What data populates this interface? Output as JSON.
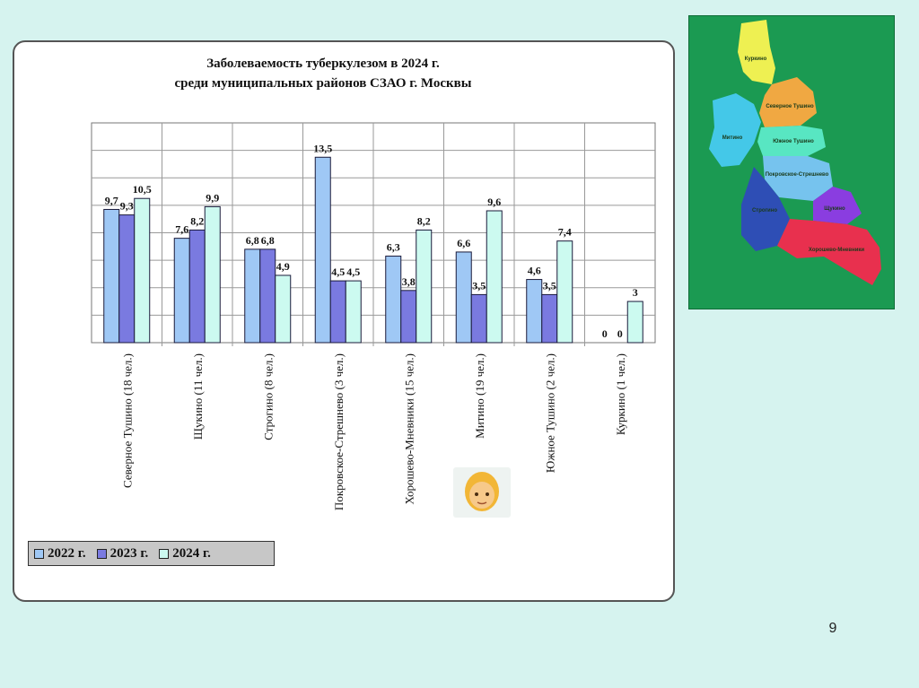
{
  "page_number": "9",
  "chart_data": {
    "type": "bar",
    "title": [
      "Заболеваемость туберкулезом в 2024 г.",
      "среди муниципальных районов СЗАО г. Москвы"
    ],
    "categories": [
      "Северное Тушино (18 чел.)",
      "Щукино (11 чел.)",
      "Строгино (8 чел.)",
      "Покровское-Стрешнево (3 чел.)",
      "Хорошево-Мневники (15 чел.)",
      "Митино (19 чел.)",
      "Южное Тушино (2 чел.)",
      "Куркино (1 чел.)"
    ],
    "series": [
      {
        "name": "2022 г.",
        "color": "#9fc8f5",
        "values": [
          9.7,
          7.6,
          6.8,
          13.5,
          6.3,
          6.6,
          4.6,
          0
        ]
      },
      {
        "name": "2023 г.",
        "color": "#7a7ae0",
        "values": [
          9.3,
          8.2,
          6.8,
          4.5,
          3.8,
          3.5,
          3.5,
          0
        ]
      },
      {
        "name": "2024 г.",
        "color": "#ccfaf0",
        "values": [
          10.5,
          9.9,
          4.9,
          4.5,
          8.2,
          9.6,
          7.4,
          3
        ]
      }
    ],
    "data_labels": [
      [
        "9,7",
        "7,6",
        "6,8",
        "13,5",
        "6,3",
        "6,6",
        "4,6",
        "0"
      ],
      [
        "9,3",
        "8,2",
        "6,8",
        "4,5",
        "3,8",
        "3,5",
        "3,5",
        "0"
      ],
      [
        "10,5",
        "9,9",
        "4,9",
        "4,5",
        "8,2",
        "9,6",
        "7,4",
        "3"
      ]
    ],
    "ylim": [
      0,
      16
    ],
    "grid": true,
    "legend_position": "bottom-left"
  },
  "map": {
    "districts": [
      {
        "label": "Куркино",
        "color": "#eef052"
      },
      {
        "label": "Северное Тушино",
        "color": "#f0a842"
      },
      {
        "label": "Митино",
        "color": "#44c8e8"
      },
      {
        "label": "Южное Тушино",
        "color": "#58e6c2"
      },
      {
        "label": "Покровское-Стрешнево",
        "color": "#76c3ee"
      },
      {
        "label": "Строгино",
        "color": "#2e4eb5"
      },
      {
        "label": "Щукино",
        "color": "#8a3de0"
      },
      {
        "label": "Хорошево-Мневники",
        "color": "#e8304e"
      }
    ]
  }
}
